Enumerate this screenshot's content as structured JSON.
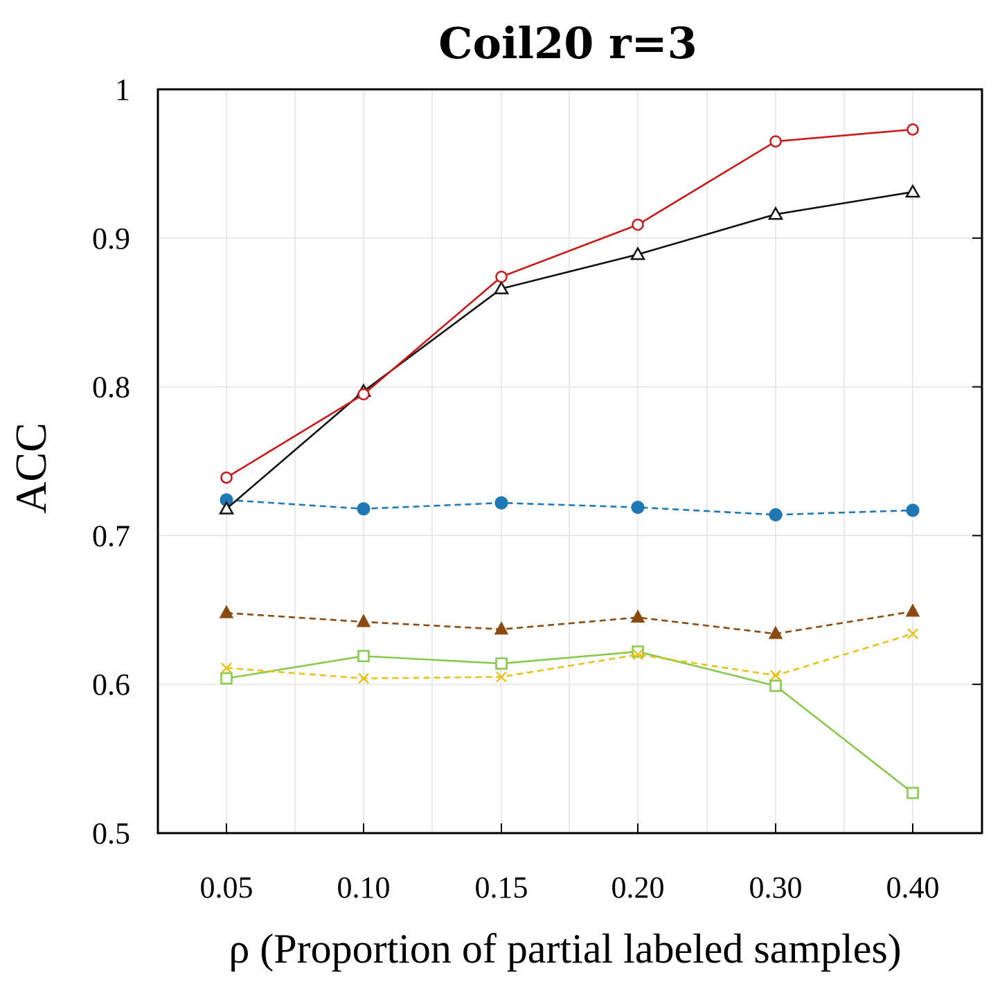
{
  "chart_data": {
    "type": "line",
    "title": "Coil20 r=3",
    "xlabel": "ρ (Proportion of partial labeled samples)",
    "ylabel": "ACC",
    "categories": [
      "0.05",
      "0.10",
      "0.15",
      "0.20",
      "0.30",
      "0.40"
    ],
    "ylim": [
      0.5,
      1.0
    ],
    "yticks": [
      "0.5",
      "0.6",
      "0.7",
      "0.8",
      "0.9",
      "1"
    ],
    "ytick_values": [
      0.5,
      0.6,
      0.7,
      0.8,
      0.9,
      1.0
    ],
    "grid": true,
    "legend": "none",
    "series": [
      {
        "name": "red-circle",
        "color": "#c81a1a",
        "marker": "circle-open",
        "dash": "solid",
        "values": [
          0.739,
          0.795,
          0.874,
          0.909,
          0.965,
          0.973
        ]
      },
      {
        "name": "black-triangle",
        "color": "#111111",
        "marker": "triangle-open",
        "dash": "solid",
        "values": [
          0.718,
          0.797,
          0.866,
          0.889,
          0.916,
          0.931
        ]
      },
      {
        "name": "blue-dot",
        "color": "#1f77b4",
        "marker": "circle-filled",
        "dash": "dashed",
        "values": [
          0.724,
          0.718,
          0.722,
          0.719,
          0.714,
          0.717
        ]
      },
      {
        "name": "brown-triangle",
        "color": "#8b4a10",
        "marker": "triangle-filled",
        "dash": "dashed",
        "values": [
          0.648,
          0.642,
          0.637,
          0.645,
          0.634,
          0.649
        ]
      },
      {
        "name": "yellow-x",
        "color": "#e8c21c",
        "marker": "x",
        "dash": "dashed",
        "values": [
          0.611,
          0.604,
          0.605,
          0.62,
          0.606,
          0.634
        ]
      },
      {
        "name": "green-square",
        "color": "#86c94c",
        "marker": "square-open",
        "dash": "solid",
        "values": [
          0.604,
          0.619,
          0.614,
          0.622,
          0.599,
          0.527
        ]
      }
    ]
  }
}
